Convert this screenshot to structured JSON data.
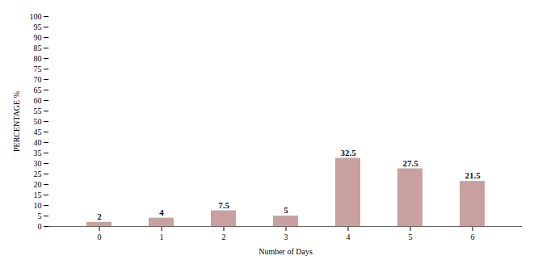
{
  "chart_data": {
    "type": "bar",
    "xlabel": "Number of Days",
    "ylabel": "PERCENTAGE %",
    "categories": [
      0,
      1,
      2,
      3,
      4,
      5,
      6
    ],
    "values": [
      2,
      4,
      7.5,
      5,
      32.5,
      27.5,
      21.5
    ],
    "color": "#c9a0a0",
    "ylim": [
      0,
      100
    ],
    "yticks": [
      0,
      5,
      10,
      15,
      20,
      25,
      30,
      35,
      40,
      45,
      50,
      55,
      60,
      65,
      70,
      75,
      80,
      85,
      90,
      95,
      100
    ],
    "grid": false,
    "data_labels": true
  }
}
